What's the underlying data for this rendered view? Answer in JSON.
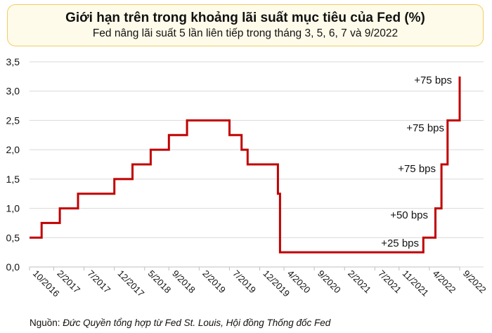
{
  "header": {
    "title": "Giới hạn trên trong khoảng lãi suất mục tiêu của Fed (%)",
    "subtitle": "Fed nâng lãi suất 5 lần liên tiếp trong tháng 3, 5, 6, 7 và 9/2022"
  },
  "source": {
    "prefix": "Nguồn: ",
    "text": "Đức Quyền tổng hợp từ Fed St. Louis, Hội đồng Thống đốc Fed"
  },
  "colors": {
    "line": "#c00000",
    "grid": "#d9d9d9",
    "title_bg": "#fffbea",
    "title_border": "#f1cd63"
  },
  "chart_data": {
    "type": "line",
    "title": "Giới hạn trên trong khoảng lãi suất mục tiêu của Fed (%)",
    "subtitle": "Fed nâng lãi suất 5 lần liên tiếp trong tháng 3, 5, 6, 7 và 9/2022",
    "xlabel": "",
    "ylabel": "",
    "ylim": [
      0,
      3.5
    ],
    "yticks": [
      0,
      0.5,
      1.0,
      1.5,
      2.0,
      2.5,
      3.0,
      3.5
    ],
    "ytick_labels": [
      "0,0",
      "0,5",
      "1,0",
      "1,5",
      "2,0",
      "2,5",
      "3,0",
      "3,5"
    ],
    "xlim": [
      "2016-10",
      "2022-09"
    ],
    "xticks": [
      "2016-10",
      "2017-02",
      "2017-07",
      "2017-12",
      "2018-05",
      "2018-09",
      "2019-02",
      "2019-07",
      "2019-12",
      "2020-04",
      "2020-09",
      "2021-02",
      "2021-07",
      "2021-11",
      "2022-04",
      "2022-09"
    ],
    "xtick_labels": [
      "10/2016",
      "2/2017",
      "7/2017",
      "12/2017",
      "5/2018",
      "9/2018",
      "2/2019",
      "7/2019",
      "12/2019",
      "4/2020",
      "9/2020",
      "2/2021",
      "7/2021",
      "11/2021",
      "4/2022",
      "9/2022"
    ],
    "grid": "horizontal",
    "step": true,
    "series": [
      {
        "points": [
          [
            "2016-10",
            0.5
          ],
          [
            "2016-12",
            0.75
          ],
          [
            "2017-03",
            1.0
          ],
          [
            "2017-06",
            1.25
          ],
          [
            "2017-12",
            1.5
          ],
          [
            "2018-03",
            1.75
          ],
          [
            "2018-06",
            2.0
          ],
          [
            "2018-09",
            2.25
          ],
          [
            "2018-12",
            2.5
          ],
          [
            "2019-07",
            2.25
          ],
          [
            "2019-09",
            2.0
          ],
          [
            "2019-10",
            1.75
          ],
          [
            "2020-03",
            1.25
          ],
          [
            "2020-03",
            0.25
          ],
          [
            "2022-03",
            0.5
          ],
          [
            "2022-05",
            1.0
          ],
          [
            "2022-06",
            1.75
          ],
          [
            "2022-07",
            2.5
          ],
          [
            "2022-09",
            3.25
          ]
        ]
      }
    ],
    "annotations": [
      "+25 bps",
      "+50 bps",
      "+75 bps",
      "+75 bps",
      "+75 bps"
    ]
  }
}
